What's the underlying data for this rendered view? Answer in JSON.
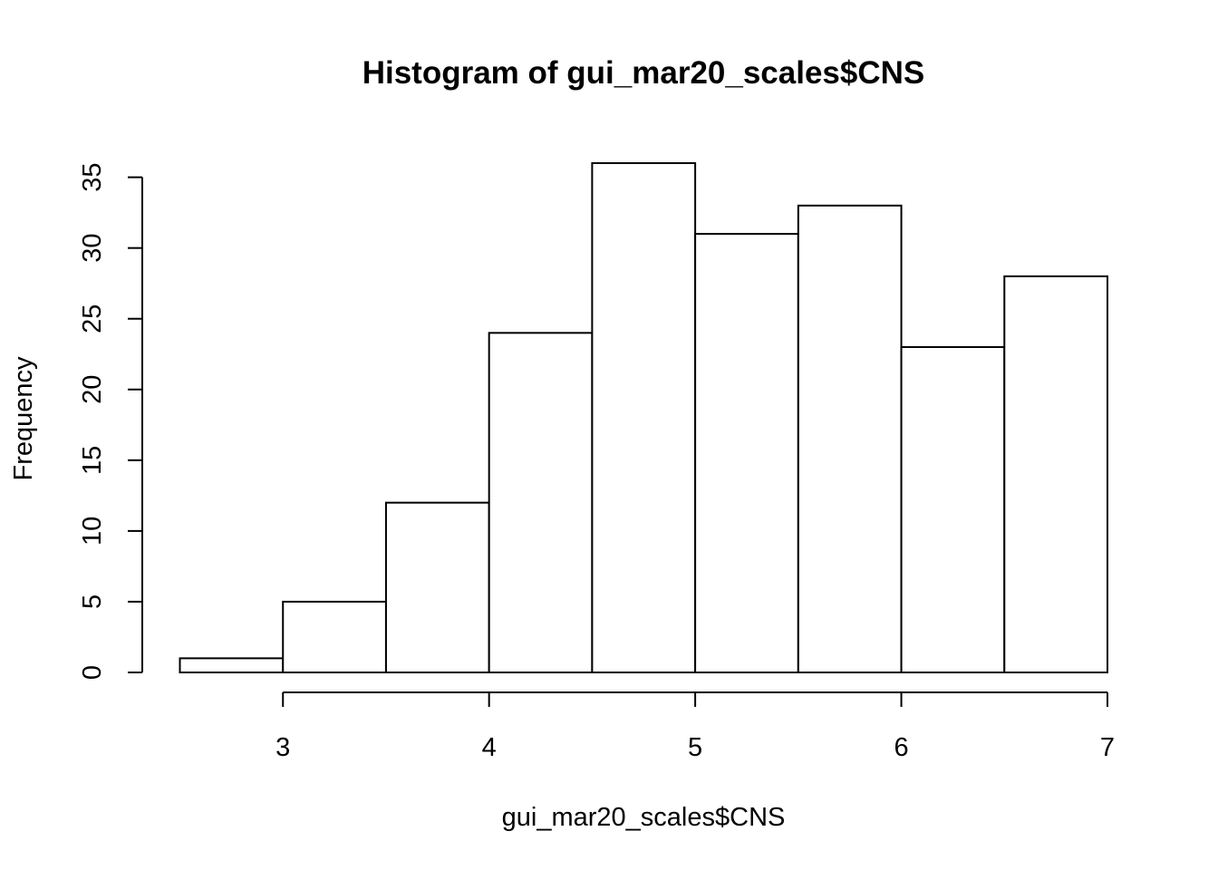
{
  "chart_data": {
    "type": "bar",
    "title": "Histogram of gui_mar20_scales$CNS",
    "xlabel": "gui_mar20_scales$CNS",
    "ylabel": "Frequency",
    "bins": [
      {
        "x0": 2.5,
        "x1": 3.0,
        "count": 1
      },
      {
        "x0": 3.0,
        "x1": 3.5,
        "count": 5
      },
      {
        "x0": 3.5,
        "x1": 4.0,
        "count": 12
      },
      {
        "x0": 4.0,
        "x1": 4.5,
        "count": 24
      },
      {
        "x0": 4.5,
        "x1": 5.0,
        "count": 36
      },
      {
        "x0": 5.0,
        "x1": 5.5,
        "count": 31
      },
      {
        "x0": 5.5,
        "x1": 6.0,
        "count": 33
      },
      {
        "x0": 6.0,
        "x1": 6.5,
        "count": 23
      },
      {
        "x0": 6.5,
        "x1": 7.0,
        "count": 28
      }
    ],
    "xlim": [
      2.5,
      7.0
    ],
    "ylim": [
      0,
      36
    ],
    "x_ticks": [
      3,
      4,
      5,
      6,
      7
    ],
    "y_ticks": [
      0,
      5,
      10,
      15,
      20,
      25,
      30,
      35
    ],
    "grid": false,
    "colors": {
      "bar_fill": "#ffffff",
      "bar_stroke": "#000000"
    }
  }
}
